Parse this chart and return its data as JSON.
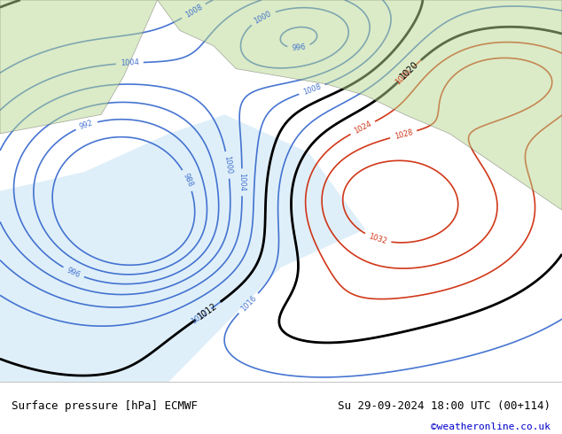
{
  "title_left": "Surface pressure [hPa] ECMWF",
  "title_right": "Su 29-09-2024 18:00 UTC (00+114)",
  "copyright": "©weatheronline.co.uk",
  "bg_color": "#c8e6c8",
  "land_color": "#c8e6b0",
  "sea_color": "#d8eef8",
  "border_color": "#000000",
  "bottom_bar_color": "#ffffff",
  "bottom_text_color": "#000000",
  "copyright_color": "#0000cc",
  "fig_width": 6.34,
  "fig_height": 4.9,
  "dpi": 100,
  "bottom_bar_height": 0.12,
  "font_size_bottom": 9,
  "font_size_copyright": 8
}
